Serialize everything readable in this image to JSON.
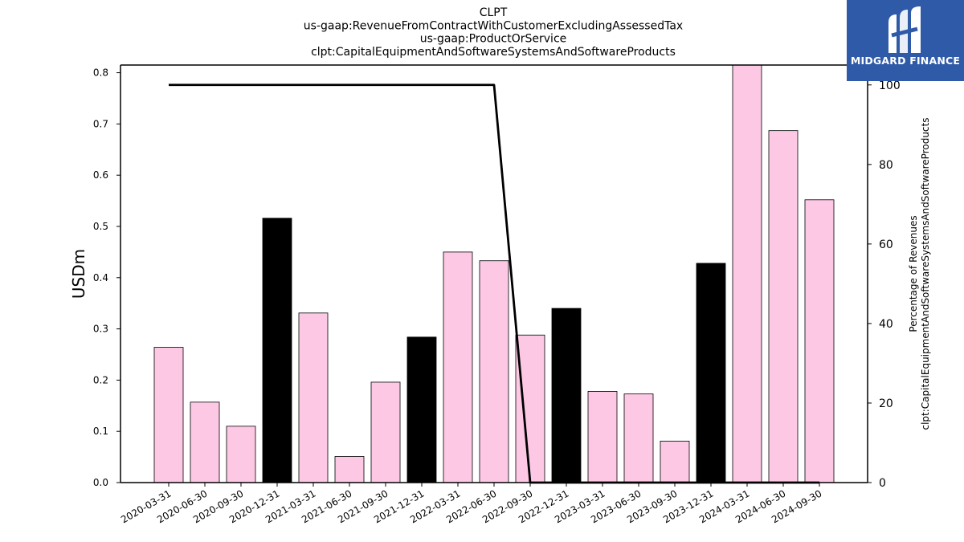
{
  "chart_data": {
    "type": "bar",
    "title_lines": [
      "CLPT",
      "us-gaap:RevenueFromContractWithCustomerExcludingAssessedTax",
      "us-gaap:ProductOrService",
      "clpt:CapitalEquipmentAndSoftwareSystemsAndSoftwareProducts"
    ],
    "ylabel": "USDm",
    "y2label_lines": [
      "Percentage of Revenues",
      "clpt:CapitalEquipmentAndSoftwareSystemsAndSoftwareProducts"
    ],
    "categories": [
      "2020-03-31",
      "2020-06-30",
      "2020-09-30",
      "2020-12-31",
      "2021-03-31",
      "2021-06-30",
      "2021-09-30",
      "2021-12-31",
      "2022-03-31",
      "2022-06-30",
      "2022-09-30",
      "2022-12-31",
      "2023-03-31",
      "2023-06-30",
      "2023-09-30",
      "2023-12-31",
      "2024-03-31",
      "2024-06-30",
      "2024-09-30"
    ],
    "values": [
      0.264,
      0.157,
      0.11,
      0.516,
      0.331,
      0.051,
      0.196,
      0.284,
      0.45,
      0.433,
      0.288,
      0.34,
      0.178,
      0.173,
      0.081,
      0.428,
      0.815,
      0.687,
      0.552
    ],
    "bar_colors": [
      "#fcc8e4",
      "#fcc8e4",
      "#fcc8e4",
      "#000000",
      "#fcc8e4",
      "#fcc8e4",
      "#fcc8e4",
      "#000000",
      "#fcc8e4",
      "#fcc8e4",
      "#fcc8e4",
      "#000000",
      "#fcc8e4",
      "#fcc8e4",
      "#fcc8e4",
      "#000000",
      "#fcc8e4",
      "#fcc8e4",
      "#fcc8e4"
    ],
    "percentage_line": [
      100,
      100,
      100,
      null,
      100,
      100,
      100,
      null,
      100,
      100,
      0,
      null,
      0,
      0,
      0,
      null,
      0,
      0,
      0
    ],
    "ylim": [
      0,
      0.815
    ],
    "yticks": [
      0.0,
      0.1,
      0.2,
      0.3,
      0.4,
      0.5,
      0.6,
      0.7,
      0.8
    ],
    "y2lim": [
      0,
      105
    ],
    "y2ticks": [
      0,
      20,
      40,
      60,
      80,
      100
    ],
    "grid": false,
    "legend": "none"
  },
  "logo": {
    "text": "MIDGARD FINANCE",
    "background": "#2f5aa8"
  }
}
